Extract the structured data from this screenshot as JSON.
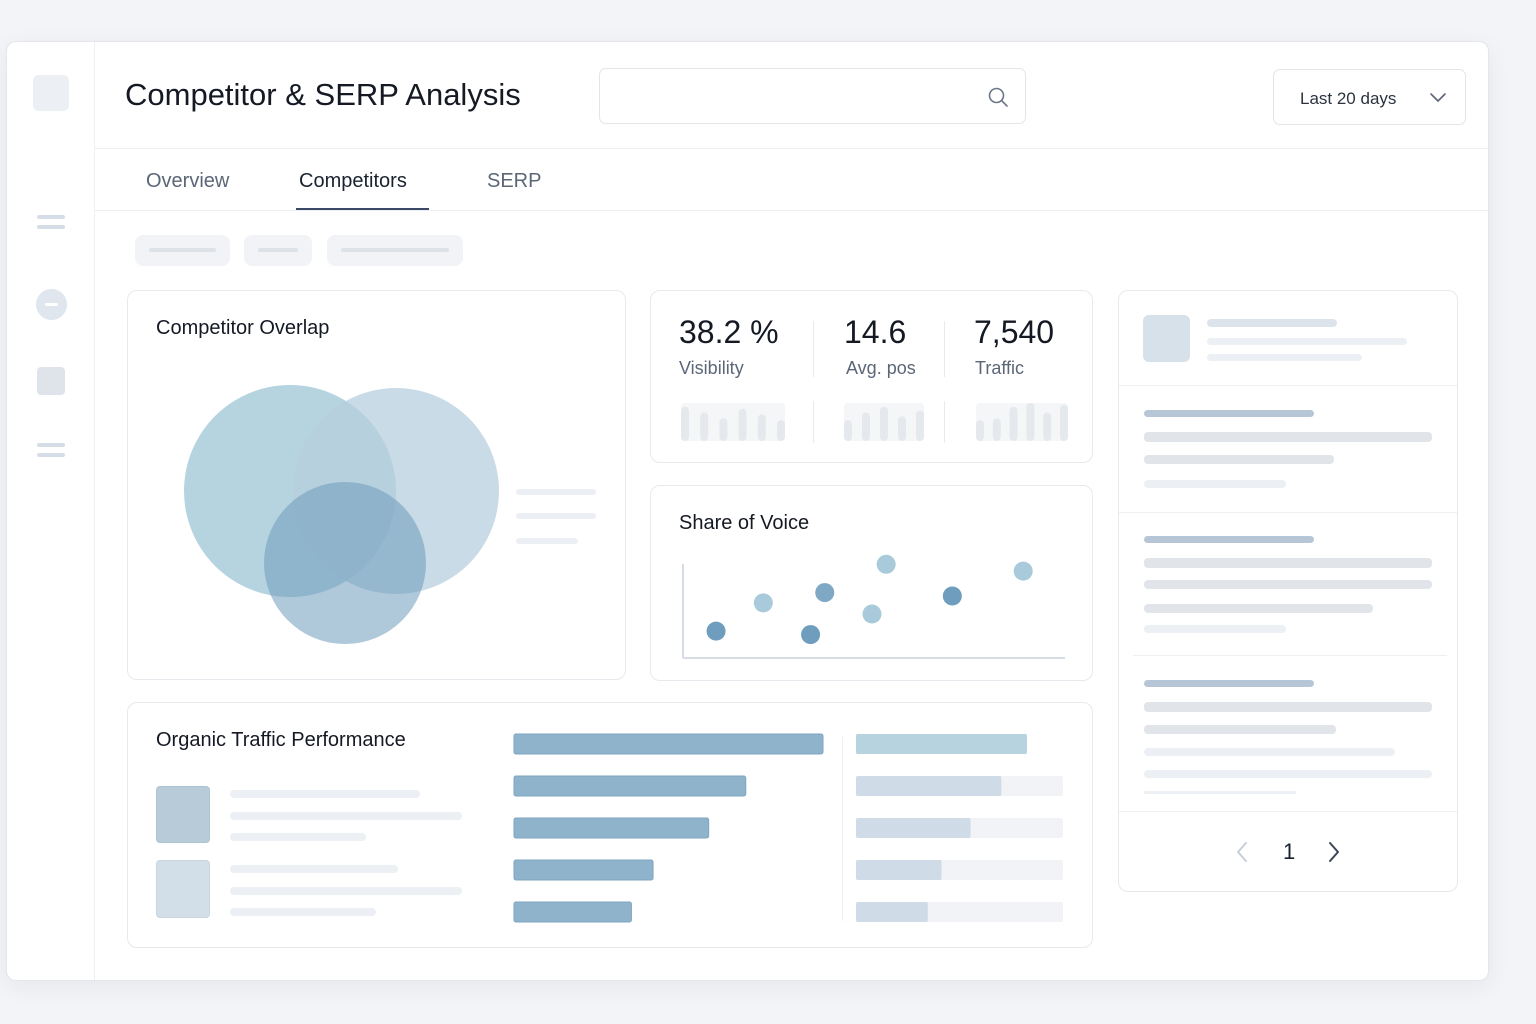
{
  "header": {
    "title": "Competitor & SERP Analysis",
    "search": {
      "value": "",
      "placeholder": ""
    },
    "date_range": {
      "selected": "Last 20 days"
    }
  },
  "tabs": [
    {
      "label": "Overview",
      "active": false
    },
    {
      "label": "Competitors",
      "active": true
    },
    {
      "label": "SERP",
      "active": false
    }
  ],
  "competitor_overlap": {
    "title": "Competitor Overlap",
    "colors": [
      "#a9cddb",
      "#b9d3e1",
      "#6e9bbb"
    ]
  },
  "metrics": [
    {
      "value": "38.2 %",
      "label": "Visibility",
      "sparkline": [
        0.9,
        0.75,
        0.6,
        0.85,
        0.7,
        0.55
      ]
    },
    {
      "value": "14.6",
      "label": "Avg. pos",
      "sparkline": [
        0.55,
        0.75,
        0.9,
        0.65,
        0.8
      ]
    },
    {
      "value": "7,540",
      "label": "Traffic",
      "sparkline": [
        0.55,
        0.6,
        0.9,
        1.0,
        0.75,
        0.95
      ]
    }
  ],
  "share_of_voice": {
    "title": "Share of Voice",
    "chart_data": {
      "type": "scatter",
      "points": [
        {
          "x": 1,
          "y": 0.22,
          "color": "#6f9dbe"
        },
        {
          "x": 2,
          "y": 0.55,
          "color": "#a9cadb"
        },
        {
          "x": 3,
          "y": 0.18,
          "color": "#6f9dbe"
        },
        {
          "x": 3.3,
          "y": 0.67,
          "color": "#7fa8c4"
        },
        {
          "x": 4.3,
          "y": 0.42,
          "color": "#a9cadb"
        },
        {
          "x": 4.6,
          "y": 1.0,
          "color": "#a9cadb"
        },
        {
          "x": 6,
          "y": 0.63,
          "color": "#6f9dbe"
        },
        {
          "x": 7.5,
          "y": 0.92,
          "color": "#a9cadb"
        }
      ],
      "xlim": [
        0.3,
        8.3
      ],
      "ylim": [
        0,
        1.05
      ]
    }
  },
  "organic_traffic": {
    "title": "Organic Traffic Performance",
    "chart_data": {
      "type": "bar",
      "orientation": "horizontal",
      "values": [
        1.0,
        0.75,
        0.63,
        0.45,
        0.38
      ],
      "secondary": [
        1.0,
        0.85,
        0.67,
        0.5,
        0.42
      ],
      "xlim": [
        0,
        1
      ]
    }
  },
  "pagination": {
    "current": "1"
  },
  "colors": {
    "accent": "#3a4a66",
    "bar": "#8fb3cb",
    "bar_light": "#cfdbe6",
    "bar_teal": "#b7d3df"
  }
}
